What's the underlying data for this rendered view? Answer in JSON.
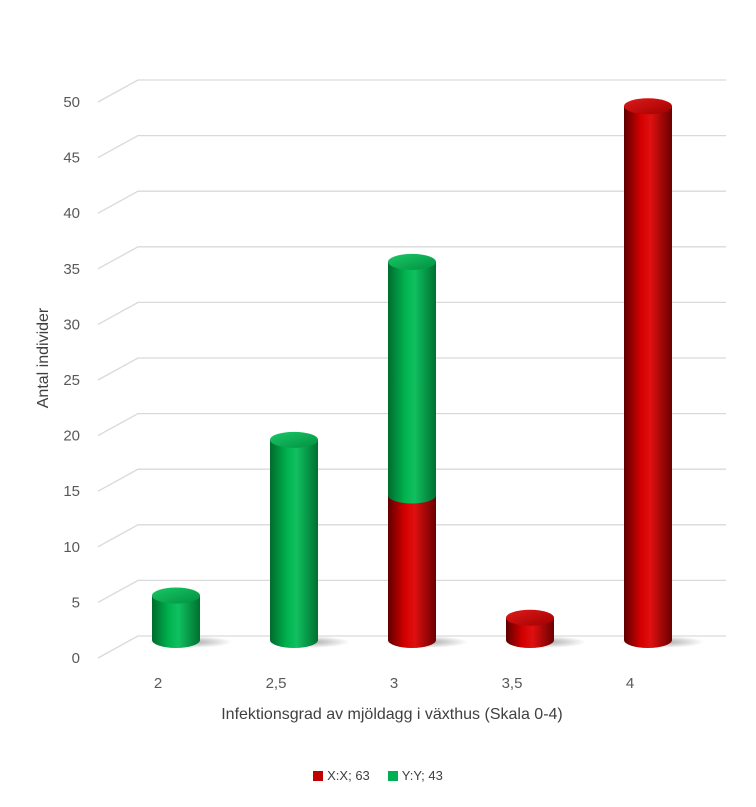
{
  "chart_data": {
    "type": "bar",
    "stacked": true,
    "style": "3d-cylinder",
    "categories": [
      "2",
      "2,5",
      "3",
      "3,5",
      "4"
    ],
    "series": [
      {
        "name": "X:X; 63",
        "color": "#C00000",
        "values": [
          0,
          0,
          13,
          2,
          48
        ]
      },
      {
        "name": "Y:Y; 43",
        "color": "#00B050",
        "values": [
          4,
          18,
          21,
          0,
          0
        ]
      }
    ],
    "xlabel": "Infektionsgrad av mjöldagg i växthus (Skala 0-4)",
    "ylabel": "Antal individer",
    "ylim": [
      0,
      50
    ],
    "yticks": [
      0,
      5,
      10,
      15,
      20,
      25,
      30,
      35,
      40,
      45,
      50
    ],
    "grid": true,
    "legend_position": "bottom"
  }
}
